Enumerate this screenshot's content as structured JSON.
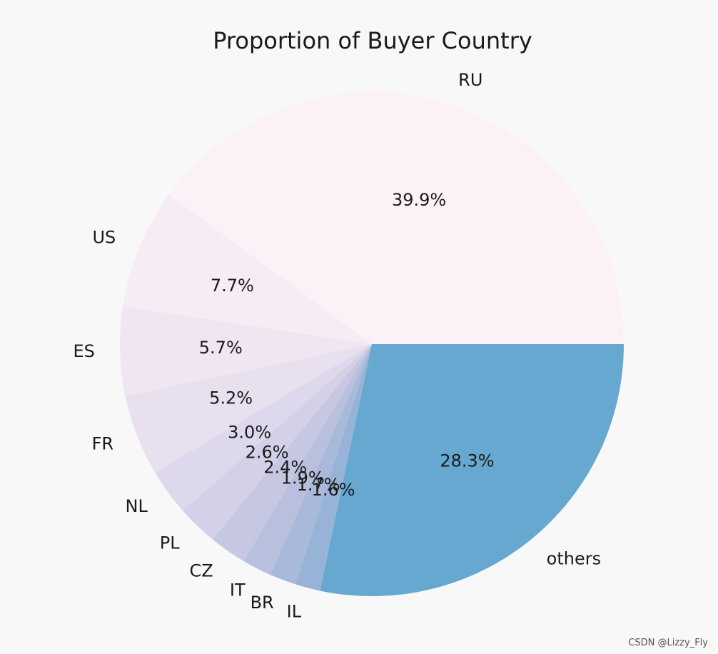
{
  "chart_data": {
    "type": "pie",
    "title": "Proportion of Buyer Country",
    "start_angle_deg": 0,
    "direction": "counterclockwise",
    "slices": [
      {
        "label": "RU",
        "value": 39.9,
        "pct_text": "39.9%",
        "color": "#fbf1f7"
      },
      {
        "label": "US",
        "value": 7.7,
        "pct_text": "7.7%",
        "color": "#f6ecf4"
      },
      {
        "label": "ES",
        "value": 5.7,
        "pct_text": "5.7%",
        "color": "#f0e6f1"
      },
      {
        "label": "FR",
        "value": 5.2,
        "pct_text": "5.2%",
        "color": "#e8e0ef"
      },
      {
        "label": "NL",
        "value": 3.0,
        "pct_text": "3.0%",
        "color": "#ded8ec"
      },
      {
        "label": "PL",
        "value": 2.6,
        "pct_text": "2.6%",
        "color": "#d3d0e8"
      },
      {
        "label": "CZ",
        "value": 2.4,
        "pct_text": "2.4%",
        "color": "#c6c8e2"
      },
      {
        "label": "IT",
        "value": 1.9,
        "pct_text": "1.9%",
        "color": "#b8c0dd"
      },
      {
        "label": "BR",
        "value": 1.7,
        "pct_text": "1.7%",
        "color": "#a9b9da"
      },
      {
        "label": "IL",
        "value": 1.6,
        "pct_text": "1.6%",
        "color": "#97b4d8"
      },
      {
        "label": "others",
        "value": 28.3,
        "pct_text": "28.3%",
        "color": "#67a8d0"
      }
    ]
  },
  "watermark": "CSDN @Lizzy_Fly"
}
